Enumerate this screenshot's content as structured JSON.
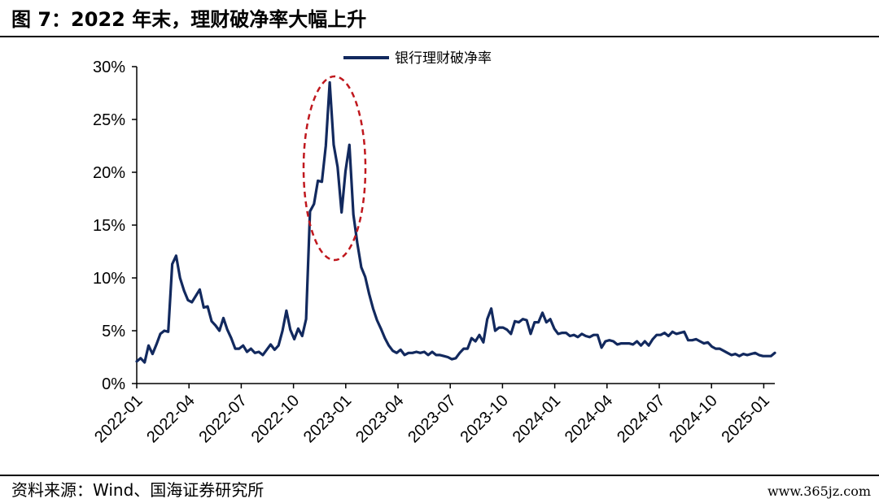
{
  "header": {
    "title": "图 7：2022 年末，理财破净率大幅上升"
  },
  "footer": {
    "source": "资料来源：Wind、国海证券研究所",
    "watermark": "www.365jz.com"
  },
  "colors": {
    "line": "#12295e",
    "highlight": "#c0181e"
  },
  "chart_data": {
    "type": "line",
    "title": "",
    "xlabel": "",
    "ylabel": "",
    "ylim": [
      0,
      30
    ],
    "y_ticks": [
      "0%",
      "5%",
      "10%",
      "15%",
      "20%",
      "25%",
      "30%"
    ],
    "y_tick_values": [
      0,
      5,
      10,
      15,
      20,
      25,
      30
    ],
    "x_ticks": [
      "2022-01",
      "2022-04",
      "2022-07",
      "2022-10",
      "2023-01",
      "2023-04",
      "2023-07",
      "2023-10",
      "2024-01",
      "2024-04",
      "2024-07",
      "2024-10",
      "2025-01"
    ],
    "legend": {
      "position": "top-center"
    },
    "annotation": "dashed ellipse highlighting peak around 2022-12",
    "series": [
      {
        "name": "银行理财破净率",
        "values": [
          2.1,
          2.4,
          2.0,
          3.6,
          2.8,
          3.7,
          4.7,
          5.0,
          4.9,
          11.3,
          12.1,
          10.0,
          8.8,
          7.9,
          7.7,
          8.3,
          8.9,
          7.2,
          7.3,
          5.9,
          5.5,
          5.0,
          6.2,
          5.1,
          4.3,
          3.3,
          3.3,
          3.6,
          3.0,
          3.3,
          2.9,
          3.0,
          2.7,
          3.2,
          3.7,
          3.2,
          3.6,
          5.0,
          6.9,
          5.1,
          4.2,
          5.2,
          4.5,
          6.1,
          16.3,
          17.0,
          19.2,
          19.1,
          22.5,
          28.5,
          22.6,
          20.5,
          16.2,
          20.1,
          22.6,
          16.0,
          13.3,
          11.0,
          10.1,
          8.5,
          7.1,
          6.0,
          5.2,
          4.3,
          3.6,
          3.1,
          2.9,
          3.2,
          2.7,
          2.9,
          2.9,
          3.0,
          2.9,
          3.0,
          2.7,
          3.0,
          2.7,
          2.7,
          2.6,
          2.5,
          2.3,
          2.4,
          2.9,
          3.3,
          3.3,
          4.3,
          4.0,
          4.6,
          3.9,
          6.1,
          7.1,
          5.0,
          5.3,
          5.3,
          5.1,
          4.7,
          5.9,
          5.8,
          6.1,
          6.0,
          4.7,
          5.8,
          5.8,
          6.7,
          5.8,
          6.1,
          5.2,
          4.7,
          4.8,
          4.8,
          4.5,
          4.6,
          4.4,
          4.7,
          4.5,
          4.4,
          4.6,
          4.6,
          3.4,
          4.0,
          4.1,
          4.0,
          3.7,
          3.8,
          3.8,
          3.8,
          3.7,
          4.0,
          3.6,
          4.0,
          3.6,
          4.2,
          4.6,
          4.6,
          4.8,
          4.5,
          4.9,
          4.7,
          4.8,
          4.9,
          4.1,
          4.1,
          4.2,
          4.0,
          3.8,
          3.9,
          3.5,
          3.3,
          3.3,
          3.1,
          2.9,
          2.7,
          2.8,
          2.6,
          2.8,
          2.7,
          2.8,
          2.9,
          2.7,
          2.6,
          2.6,
          2.6,
          2.9
        ]
      }
    ]
  }
}
